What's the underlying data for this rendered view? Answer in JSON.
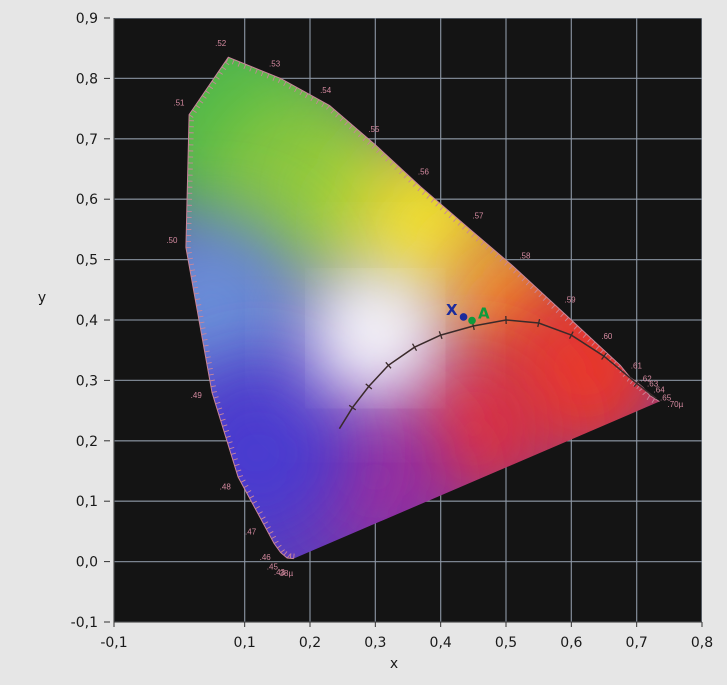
{
  "chart_data": {
    "type": "scatter",
    "title": "",
    "xlabel": "x",
    "ylabel": "y",
    "xlim": [
      -0.1,
      0.8
    ],
    "ylim": [
      -0.1,
      0.9
    ],
    "x_ticks": [
      "-0,1",
      "0,1",
      "0,2",
      "0,3",
      "0,4",
      "0,5",
      "0,6",
      "0,7",
      "0,8"
    ],
    "x_tick_values": [
      -0.1,
      0.1,
      0.2,
      0.3,
      0.4,
      0.5,
      0.6,
      0.7,
      0.8
    ],
    "y_ticks": [
      "-0,1",
      "0,0",
      "0,1",
      "0,2",
      "0,3",
      "0,4",
      "0,5",
      "0,6",
      "0,7",
      "0,8",
      "0,9"
    ],
    "y_tick_values": [
      -0.1,
      0.0,
      0.1,
      0.2,
      0.3,
      0.4,
      0.5,
      0.6,
      0.7,
      0.8,
      0.9
    ],
    "grid": true,
    "background_color": "#141414",
    "grid_color": "#8e98a6",
    "spectral_locus": [
      {
        "label": "38µ",
        "x": 0.175,
        "y": 0.005
      },
      {
        "label": ".43",
        "x": 0.165,
        "y": 0.006
      },
      {
        "label": ".45",
        "x": 0.155,
        "y": 0.015
      },
      {
        "label": ".46",
        "x": 0.145,
        "y": 0.03
      },
      {
        "label": ".47",
        "x": 0.125,
        "y": 0.07
      },
      {
        "label": ".48",
        "x": 0.09,
        "y": 0.14
      },
      {
        "label": ".49",
        "x": 0.05,
        "y": 0.28
      },
      {
        "label": ".50",
        "x": 0.01,
        "y": 0.52
      },
      {
        "label": ".51",
        "x": 0.015,
        "y": 0.74
      },
      {
        "label": ".52",
        "x": 0.075,
        "y": 0.835
      },
      {
        "label": ".53",
        "x": 0.155,
        "y": 0.8
      },
      {
        "label": ".54",
        "x": 0.23,
        "y": 0.755
      },
      {
        "label": ".55",
        "x": 0.3,
        "y": 0.69
      },
      {
        "label": ".56",
        "x": 0.37,
        "y": 0.62
      },
      {
        "label": ".57",
        "x": 0.445,
        "y": 0.55
      },
      {
        "label": ".58",
        "x": 0.51,
        "y": 0.49
      },
      {
        "label": ".59",
        "x": 0.575,
        "y": 0.425
      },
      {
        "label": ".60",
        "x": 0.63,
        "y": 0.37
      },
      {
        "label": ".61",
        "x": 0.675,
        "y": 0.325
      },
      {
        "label": ".62",
        "x": 0.69,
        "y": 0.305
      },
      {
        "label": ".63",
        "x": 0.7,
        "y": 0.297
      },
      {
        "label": ".64",
        "x": 0.71,
        "y": 0.288
      },
      {
        "label": ".65",
        "x": 0.72,
        "y": 0.275
      },
      {
        "label": ".70µ",
        "x": 0.735,
        "y": 0.265
      }
    ],
    "planckian_locus": [
      {
        "x": 0.245,
        "y": 0.22
      },
      {
        "x": 0.265,
        "y": 0.255
      },
      {
        "x": 0.29,
        "y": 0.29
      },
      {
        "x": 0.32,
        "y": 0.325
      },
      {
        "x": 0.36,
        "y": 0.355
      },
      {
        "x": 0.4,
        "y": 0.375
      },
      {
        "x": 0.45,
        "y": 0.39
      },
      {
        "x": 0.5,
        "y": 0.4
      },
      {
        "x": 0.55,
        "y": 0.395
      },
      {
        "x": 0.6,
        "y": 0.375
      },
      {
        "x": 0.65,
        "y": 0.34
      },
      {
        "x": 0.7,
        "y": 0.295
      },
      {
        "x": 0.73,
        "y": 0.27
      }
    ],
    "points": [
      {
        "label": "X",
        "x": 0.435,
        "y": 0.405,
        "color": "#1c2b9c"
      },
      {
        "label": "A",
        "x": 0.448,
        "y": 0.399,
        "color": "#0e9a3c"
      }
    ]
  }
}
